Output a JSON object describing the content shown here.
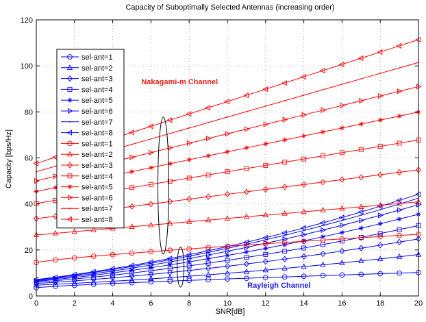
{
  "chart_data": {
    "type": "line",
    "title": "Capacity of Suboptimally Selected Antennas (increasing order)",
    "xlabel": "SNR[dB]",
    "ylabel": "Capacity [bps/Hz]",
    "xlim": [
      0,
      20
    ],
    "ylim": [
      0,
      120
    ],
    "xticks": [
      0,
      2,
      4,
      6,
      8,
      10,
      12,
      14,
      16,
      18,
      20
    ],
    "yticks": [
      0,
      20,
      40,
      60,
      80,
      100,
      120
    ],
    "grid": true,
    "legend_position": "left",
    "x": [
      0,
      1,
      2,
      3,
      4,
      5,
      6,
      7,
      8,
      9,
      10,
      11,
      12,
      13,
      14,
      15,
      16,
      17,
      18,
      19,
      20
    ],
    "annotations": [
      {
        "text": "Nakagami-m Channel",
        "color": "#e8231c",
        "x": 7.5,
        "y": 92
      },
      {
        "text": "Rayleigh Channel",
        "color": "#1a1ae6",
        "x": 12.7,
        "y": 3.5
      }
    ],
    "series": [
      {
        "name": "sel-ant=1",
        "color": "#0000ff",
        "marker": "circle",
        "start": 3.6,
        "end": 10.2,
        "shape": "concave"
      },
      {
        "name": "sel-ant=2",
        "color": "#0000ff",
        "marker": "triangle-up",
        "start": 4.7,
        "end": 18.0,
        "shape": "convex"
      },
      {
        "name": "sel-ant=3",
        "color": "#0000ff",
        "marker": "diamond",
        "start": 5.4,
        "end": 24.8,
        "shape": "convex"
      },
      {
        "name": "sel-ant=4",
        "color": "#0000ff",
        "marker": "square",
        "start": 5.9,
        "end": 30.6,
        "shape": "convex"
      },
      {
        "name": "sel-ant=5",
        "color": "#0000ff",
        "marker": "star",
        "start": 6.3,
        "end": 35.5,
        "shape": "convex"
      },
      {
        "name": "sel-ant=6",
        "color": "#0000ff",
        "marker": "triangle-right",
        "start": 6.6,
        "end": 39.7,
        "shape": "convex"
      },
      {
        "name": "sel-ant=7",
        "color": "#0000ff",
        "marker": "point",
        "start": 6.9,
        "end": 42.5,
        "shape": "convex"
      },
      {
        "name": "sel-ant=8",
        "color": "#0000ff",
        "marker": "triangle-left",
        "start": 7.1,
        "end": 44.2,
        "shape": "convex"
      },
      {
        "name": "sel-ant=1",
        "color": "#ff0000",
        "marker": "circle",
        "start": 14.6,
        "end": 26.8,
        "shape": "concave"
      },
      {
        "name": "sel-ant=2",
        "color": "#ff0000",
        "marker": "triangle-up",
        "start": 26.5,
        "end": 40.9,
        "shape": "linear"
      },
      {
        "name": "sel-ant=3",
        "color": "#ff0000",
        "marker": "diamond",
        "start": 33.6,
        "end": 54.8,
        "shape": "linear"
      },
      {
        "name": "sel-ant=4",
        "color": "#ff0000",
        "marker": "square",
        "start": 40.2,
        "end": 67.8,
        "shape": "linear"
      },
      {
        "name": "sel-ant=5",
        "color": "#ff0000",
        "marker": "star",
        "start": 45.4,
        "end": 79.9,
        "shape": "linear"
      },
      {
        "name": "sel-ant=6",
        "color": "#ff0000",
        "marker": "triangle-right",
        "start": 50.0,
        "end": 91.0,
        "shape": "linear"
      },
      {
        "name": "sel-ant=7",
        "color": "#ff0000",
        "marker": "point",
        "start": 54.0,
        "end": 101.5,
        "shape": "linear"
      },
      {
        "name": "sel-ant=8",
        "color": "#ff0000",
        "marker": "triangle-left",
        "start": 57.6,
        "end": 111.4,
        "shape": "linear"
      }
    ]
  }
}
